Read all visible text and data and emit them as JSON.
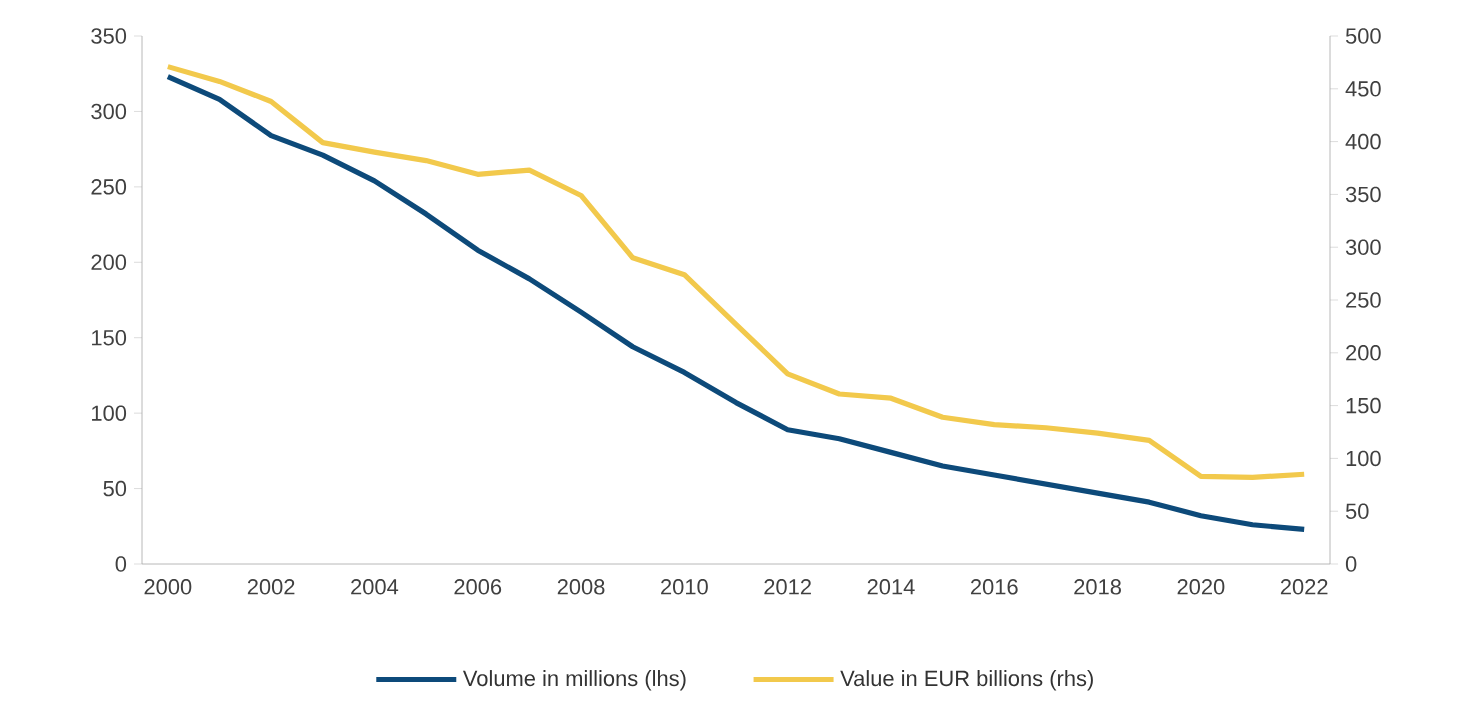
{
  "chart_data": {
    "type": "line",
    "categories": [
      "2000",
      null,
      "2002",
      null,
      "2004",
      null,
      "2006",
      null,
      "2008",
      null,
      "2010",
      null,
      "2012",
      null,
      "2014",
      null,
      "2016",
      null,
      "2018",
      null,
      "2020",
      null,
      "2022"
    ],
    "series": [
      {
        "name": "Volume in millions (lhs)",
        "color": "#0d4a7a",
        "values": [
          323,
          308,
          284,
          271,
          254,
          232,
          208,
          189,
          167,
          144,
          127,
          107,
          89,
          83,
          74,
          65,
          59,
          53,
          47,
          41,
          32,
          26,
          23
        ]
      },
      {
        "name": "Value in EUR billions (rhs)",
        "color": "#f2c94c",
        "axis": "y2",
        "values": [
          471,
          457,
          438,
          399,
          390,
          382,
          369,
          373,
          349,
          290,
          274,
          227,
          180,
          161,
          157,
          139,
          132,
          129,
          124,
          117,
          83,
          82,
          85
        ]
      }
    ],
    "ylim": [
      0,
      350
    ],
    "yticks": [
      0,
      50,
      100,
      150,
      200,
      250,
      300,
      350
    ],
    "y2lim": [
      0,
      500
    ],
    "y2ticks": [
      0,
      50,
      100,
      150,
      200,
      250,
      300,
      350,
      400,
      450,
      500
    ],
    "grid": false,
    "legend": "bottom",
    "marker": "none",
    "line_style": "solid"
  }
}
